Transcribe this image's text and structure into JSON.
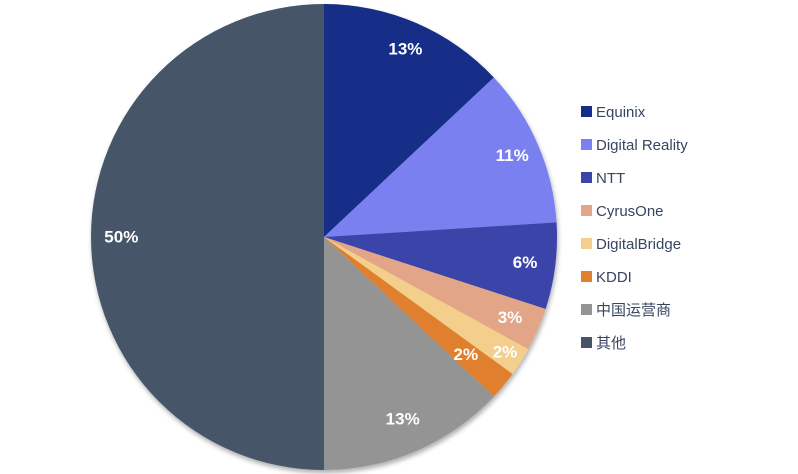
{
  "figure": {
    "background": "#FFFFFF",
    "slice_label_color": "#FFFFFF",
    "legend_text_color": "#374560"
  },
  "chart_data": {
    "type": "pie",
    "title": "",
    "unit": "%",
    "start_angle_deg": 0,
    "direction": "clockwise",
    "legend_position": "right",
    "grid": false,
    "slices": [
      {
        "label": "Equinix",
        "value": 13,
        "display": "13%",
        "color": "#132F87"
      },
      {
        "label": "Digital Reality",
        "value": 11,
        "display": "11%",
        "color": "#7A80EF"
      },
      {
        "label": "NTT",
        "value": 6,
        "display": "6%",
        "color": "#3B45A9"
      },
      {
        "label": "CyrusOne",
        "value": 3,
        "display": "3%",
        "color": "#E2A587"
      },
      {
        "label": "DigitalBridge",
        "value": 2,
        "display": "2%",
        "color": "#F4CF8C"
      },
      {
        "label": "KDDI",
        "value": 2,
        "display": "2%",
        "color": "#E0802F"
      },
      {
        "label": "中国运营商",
        "value": 13,
        "display": "13%",
        "color": "#949494"
      },
      {
        "label": "其他",
        "value": 50,
        "display": "50%",
        "color": "#465468"
      }
    ]
  }
}
